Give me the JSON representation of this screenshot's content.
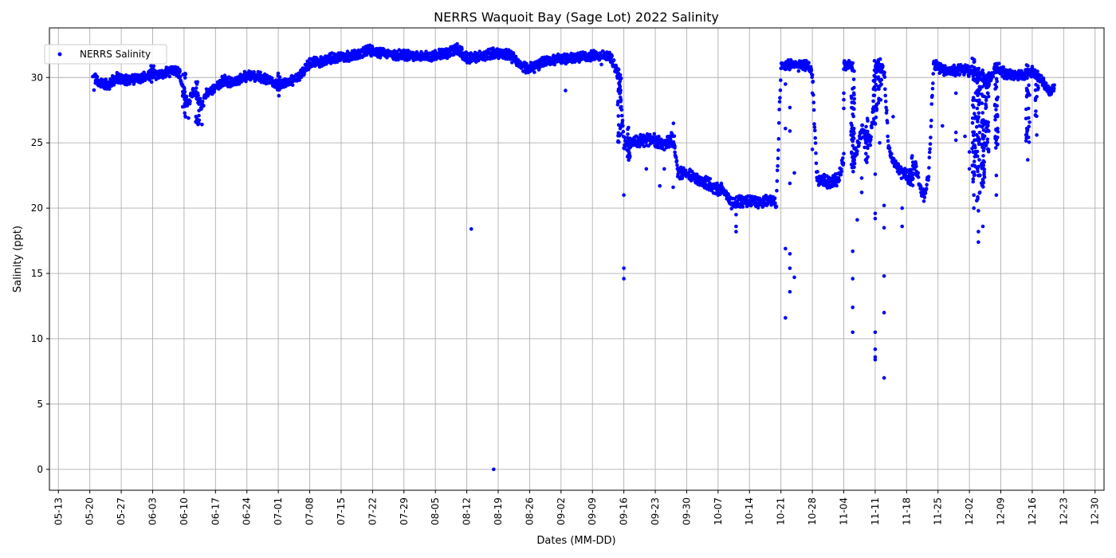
{
  "chart_data": {
    "type": "scatter",
    "title": "NERRS Waquoit Bay (Sage Lot) 2022 Salinity",
    "xlabel": "Dates (MM-DD)",
    "ylabel": "Salinity (ppt)",
    "xlim": [
      "2022-05-11",
      "2023-01-01"
    ],
    "ylim": [
      -1.6,
      33.8
    ],
    "x_ticks": [
      "05-13",
      "05-20",
      "05-27",
      "06-03",
      "06-10",
      "06-17",
      "06-24",
      "07-01",
      "07-08",
      "07-15",
      "07-22",
      "07-29",
      "08-05",
      "08-12",
      "08-19",
      "08-26",
      "09-02",
      "09-09",
      "09-16",
      "09-23",
      "09-30",
      "10-07",
      "10-14",
      "10-21",
      "10-28",
      "11-04",
      "11-11",
      "11-18",
      "11-25",
      "12-02",
      "12-09",
      "12-16",
      "12-23",
      "12-30"
    ],
    "y_ticks": [
      0,
      5,
      10,
      15,
      20,
      25,
      30
    ],
    "grid": true,
    "legend_position": "top-left",
    "color": "#0000ff",
    "series": [
      {
        "name": "NERRS Salinity",
        "trend": [
          [
            "2022-05-21",
            30.0
          ],
          [
            "2022-05-22",
            29.6
          ],
          [
            "2022-05-24",
            29.4
          ],
          [
            "2022-05-26",
            30.0
          ],
          [
            "2022-05-28",
            29.8
          ],
          [
            "2022-05-30",
            29.9
          ],
          [
            "2022-06-01",
            30.0
          ],
          [
            "2022-06-03",
            30.3
          ],
          [
            "2022-06-05",
            30.2
          ],
          [
            "2022-06-07",
            30.5
          ],
          [
            "2022-06-09",
            30.4
          ],
          [
            "2022-06-10",
            28.5
          ],
          [
            "2022-06-11",
            28.0
          ],
          [
            "2022-06-12",
            29.0
          ],
          [
            "2022-06-13",
            28.5
          ],
          [
            "2022-06-14",
            27.8
          ],
          [
            "2022-06-15",
            28.8
          ],
          [
            "2022-06-17",
            29.3
          ],
          [
            "2022-06-19",
            29.8
          ],
          [
            "2022-06-21",
            29.6
          ],
          [
            "2022-06-23",
            30.0
          ],
          [
            "2022-06-25",
            30.2
          ],
          [
            "2022-06-27",
            30.0
          ],
          [
            "2022-06-29",
            29.8
          ],
          [
            "2022-07-01",
            29.4
          ],
          [
            "2022-07-03",
            29.6
          ],
          [
            "2022-07-05",
            29.9
          ],
          [
            "2022-07-07",
            30.6
          ],
          [
            "2022-07-08",
            31.1
          ],
          [
            "2022-07-10",
            31.2
          ],
          [
            "2022-07-13",
            31.5
          ],
          [
            "2022-07-16",
            31.6
          ],
          [
            "2022-07-19",
            31.8
          ],
          [
            "2022-07-21",
            32.1
          ],
          [
            "2022-07-24",
            31.9
          ],
          [
            "2022-07-27",
            31.7
          ],
          [
            "2022-07-30",
            31.7
          ],
          [
            "2022-08-02",
            31.6
          ],
          [
            "2022-08-05",
            31.7
          ],
          [
            "2022-08-08",
            31.9
          ],
          [
            "2022-08-10",
            32.2
          ],
          [
            "2022-08-12",
            31.5
          ],
          [
            "2022-08-15",
            31.6
          ],
          [
            "2022-08-18",
            31.9
          ],
          [
            "2022-08-21",
            31.8
          ],
          [
            "2022-08-23",
            31.3
          ],
          [
            "2022-08-25",
            30.7
          ],
          [
            "2022-08-27",
            30.8
          ],
          [
            "2022-08-29",
            31.2
          ],
          [
            "2022-09-01",
            31.4
          ],
          [
            "2022-09-04",
            31.5
          ],
          [
            "2022-09-07",
            31.6
          ],
          [
            "2022-09-10",
            31.7
          ],
          [
            "2022-09-13",
            31.6
          ],
          [
            "2022-09-14",
            30.8
          ],
          [
            "2022-09-15",
            30.0
          ],
          [
            "2022-09-16",
            25.0
          ],
          [
            "2022-09-18",
            25.0
          ],
          [
            "2022-09-20",
            25.2
          ],
          [
            "2022-09-22",
            25.3
          ],
          [
            "2022-09-24",
            25.0
          ],
          [
            "2022-09-26",
            25.0
          ],
          [
            "2022-09-27",
            25.2
          ],
          [
            "2022-09-28",
            22.8
          ],
          [
            "2022-09-30",
            22.6
          ],
          [
            "2022-10-02",
            22.3
          ],
          [
            "2022-10-04",
            22.0
          ],
          [
            "2022-10-06",
            21.6
          ],
          [
            "2022-10-08",
            21.4
          ],
          [
            "2022-10-10",
            20.4
          ],
          [
            "2022-10-13",
            20.6
          ],
          [
            "2022-10-15",
            20.5
          ],
          [
            "2022-10-17",
            20.5
          ],
          [
            "2022-10-19",
            20.6
          ],
          [
            "2022-10-20",
            20.3
          ],
          [
            "2022-10-21",
            30.9
          ],
          [
            "2022-10-23",
            31.0
          ],
          [
            "2022-10-25",
            30.9
          ],
          [
            "2022-10-27",
            30.9
          ],
          [
            "2022-10-28",
            30.4
          ],
          [
            "2022-10-29",
            22.3
          ],
          [
            "2022-11-01",
            21.9
          ],
          [
            "2022-11-03",
            22.3
          ],
          [
            "2022-11-04",
            24.0
          ],
          [
            "2022-11-04",
            30.9
          ],
          [
            "2022-11-06",
            31.0
          ],
          [
            "2022-11-06",
            23.2
          ],
          [
            "2022-11-08",
            26.0
          ],
          [
            "2022-11-10",
            25.0
          ],
          [
            "2022-11-11",
            30.5
          ],
          [
            "2022-11-12",
            30.8
          ],
          [
            "2022-11-13",
            30.5
          ],
          [
            "2022-11-14",
            24.5
          ],
          [
            "2022-11-16",
            23.0
          ],
          [
            "2022-11-18",
            22.5
          ],
          [
            "2022-11-19",
            22.0
          ],
          [
            "2022-11-20",
            23.3
          ],
          [
            "2022-11-21",
            21.5
          ],
          [
            "2022-11-22",
            20.9
          ],
          [
            "2022-11-23",
            22.8
          ],
          [
            "2022-11-24",
            31.0
          ],
          [
            "2022-11-26",
            30.6
          ],
          [
            "2022-11-28",
            30.5
          ],
          [
            "2022-11-30",
            30.6
          ],
          [
            "2022-12-02",
            30.5
          ],
          [
            "2022-12-04",
            30.3
          ],
          [
            "2022-12-06",
            29.5
          ],
          [
            "2022-12-08",
            30.8
          ],
          [
            "2022-12-10",
            30.3
          ],
          [
            "2022-12-12",
            30.2
          ],
          [
            "2022-12-14",
            30.1
          ],
          [
            "2022-12-16",
            30.5
          ],
          [
            "2022-12-18",
            29.8
          ],
          [
            "2022-12-20",
            28.8
          ],
          [
            "2022-12-21",
            29.5
          ]
        ],
        "outliers": [
          [
            "2022-08-13",
            18.4
          ],
          [
            "2022-08-18",
            0.0
          ],
          [
            "2022-09-03",
            29.0
          ],
          [
            "2022-09-11",
            31.0
          ],
          [
            "2022-09-16",
            21.0
          ],
          [
            "2022-09-16",
            15.4
          ],
          [
            "2022-09-16",
            14.6
          ],
          [
            "2022-09-24",
            21.7
          ],
          [
            "2022-09-27",
            21.6
          ],
          [
            "2022-10-11",
            18.2
          ],
          [
            "2022-10-11",
            18.6
          ],
          [
            "2022-10-11",
            19.5
          ],
          [
            "2022-10-22",
            11.6
          ],
          [
            "2022-10-22",
            16.9
          ],
          [
            "2022-10-22",
            26.1
          ],
          [
            "2022-10-22",
            29.5
          ],
          [
            "2022-10-23",
            16.5
          ],
          [
            "2022-10-23",
            15.4
          ],
          [
            "2022-10-23",
            13.6
          ],
          [
            "2022-10-23",
            27.7
          ],
          [
            "2022-10-23",
            25.9
          ],
          [
            "2022-10-23",
            21.9
          ],
          [
            "2022-10-24",
            14.7
          ],
          [
            "2022-10-24",
            22.7
          ],
          [
            "2022-10-28",
            28.8
          ],
          [
            "2022-10-28",
            24.5
          ],
          [
            "2022-11-04",
            28.8
          ],
          [
            "2022-11-04",
            28.3
          ],
          [
            "2022-11-06",
            16.7
          ],
          [
            "2022-11-06",
            14.6
          ],
          [
            "2022-11-06",
            12.4
          ],
          [
            "2022-11-06",
            10.5
          ],
          [
            "2022-11-07",
            19.1
          ],
          [
            "2022-11-08",
            21.2
          ],
          [
            "2022-11-08",
            22.3
          ],
          [
            "2022-11-11",
            10.5
          ],
          [
            "2022-11-11",
            9.2
          ],
          [
            "2022-11-11",
            8.6
          ],
          [
            "2022-11-11",
            8.4
          ],
          [
            "2022-11-11",
            19.6
          ],
          [
            "2022-11-11",
            19.2
          ],
          [
            "2022-11-11",
            22.6
          ],
          [
            "2022-11-12",
            25.0
          ],
          [
            "2022-11-13",
            7.0
          ],
          [
            "2022-11-13",
            12.0
          ],
          [
            "2022-11-13",
            14.8
          ],
          [
            "2022-11-13",
            18.5
          ],
          [
            "2022-11-13",
            20.2
          ],
          [
            "2022-11-15",
            27.0
          ],
          [
            "2022-11-17",
            18.6
          ],
          [
            "2022-11-17",
            20.0
          ],
          [
            "2022-11-26",
            26.3
          ],
          [
            "2022-11-29",
            25.2
          ],
          [
            "2022-11-29",
            25.8
          ],
          [
            "2022-11-29",
            28.8
          ],
          [
            "2022-12-01",
            25.5
          ],
          [
            "2022-12-02",
            24.3
          ],
          [
            "2022-12-02",
            23.0
          ],
          [
            "2022-12-03",
            20.0
          ],
          [
            "2022-12-03",
            21.0
          ],
          [
            "2022-12-04",
            18.2
          ],
          [
            "2022-12-04",
            17.4
          ],
          [
            "2022-12-04",
            19.8
          ],
          [
            "2022-12-04",
            22.5
          ],
          [
            "2022-12-05",
            18.6
          ],
          [
            "2022-12-05",
            22.2
          ],
          [
            "2022-12-08",
            21.0
          ],
          [
            "2022-12-08",
            22.5
          ],
          [
            "2022-12-15",
            23.7
          ],
          [
            "2022-12-17",
            25.6
          ],
          [
            "2022-06-11",
            26.9
          ],
          [
            "2022-06-14",
            26.4
          ],
          [
            "2022-09-21",
            23.0
          ],
          [
            "2022-09-25",
            23.0
          ]
        ],
        "spikes": [
          [
            "2022-06-10",
            26.9,
            30.5
          ],
          [
            "2022-06-13",
            26.4,
            30.0
          ],
          [
            "2022-09-15",
            24.5,
            30.8
          ],
          [
            "2022-09-17",
            23.5,
            26.5
          ],
          [
            "2022-09-27",
            24.5,
            26.6
          ],
          [
            "2022-11-06",
            22.5,
            31.0
          ],
          [
            "2022-11-09",
            23.5,
            27.0
          ],
          [
            "2022-11-11",
            26.0,
            31.5
          ],
          [
            "2022-11-12",
            27.5,
            31.6
          ],
          [
            "2022-11-19",
            21.5,
            24.0
          ],
          [
            "2022-12-03",
            22.0,
            31.5
          ],
          [
            "2022-12-04",
            20.0,
            30.0
          ],
          [
            "2022-12-05",
            21.5,
            31.0
          ],
          [
            "2022-12-06",
            24.0,
            30.5
          ],
          [
            "2022-12-08",
            24.5,
            31.2
          ],
          [
            "2022-12-15",
            25.0,
            31.0
          ],
          [
            "2022-12-17",
            27.0,
            30.5
          ],
          [
            "2022-05-21",
            29.0,
            30.8
          ],
          [
            "2022-06-03",
            29.5,
            31.0
          ],
          [
            "2022-07-01",
            28.6,
            30.4
          ]
        ]
      }
    ]
  }
}
